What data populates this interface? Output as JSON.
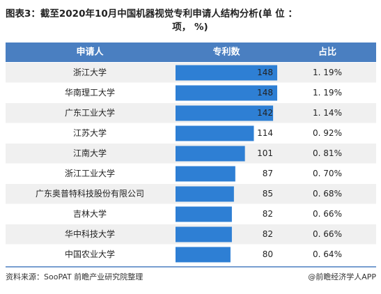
{
  "chart_data": {
    "type": "bar",
    "title": "图表3：截至2020年10月中国机器视觉专利申请人结构分析(单 位 ：项， %)",
    "columns": [
      "申请人",
      "专利数",
      "占比"
    ],
    "categories": [
      "浙江大学",
      "华南理工大学",
      "广东工业大学",
      "江苏大学",
      "江南大学",
      "浙江工业大学",
      "广东奥普特科技股份有限公司",
      "吉林大学",
      "华中科技大学",
      "中国农业大学"
    ],
    "values": [
      148,
      148,
      142,
      114,
      101,
      87,
      85,
      82,
      82,
      80
    ],
    "color": "#2e7fd4",
    "shares": [
      "1. 19%",
      "1. 19%",
      "1. 14%",
      "0. 92%",
      "0. 81%",
      "0. 70%",
      "0. 68%",
      "0. 66%",
      "0. 66%",
      "0. 64%"
    ],
    "source": "资料来源：SooPAT  前瞻产业研究院整理",
    "brand": "@前瞻经济学人APP"
  }
}
